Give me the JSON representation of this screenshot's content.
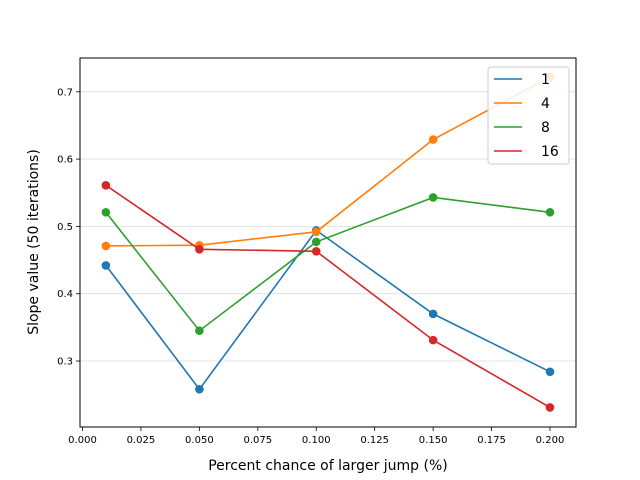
{
  "chart_data": {
    "type": "line",
    "title": "",
    "xlabel": "Percent chance of larger jump (%)",
    "ylabel": "Slope value (50 iterations)",
    "x": [
      0.01,
      0.05,
      0.1,
      0.15,
      0.2
    ],
    "xlim": [
      -0.0,
      0.21
    ],
    "ylim": [
      0.2,
      0.75
    ],
    "xticks": [
      0.0,
      0.025,
      0.05,
      0.075,
      0.1,
      0.125,
      0.15,
      0.175,
      0.2
    ],
    "xtick_labels": [
      "0.000",
      "0.025",
      "0.050",
      "0.075",
      "0.100",
      "0.125",
      "0.150",
      "0.175",
      "0.200"
    ],
    "yticks": [
      0.3,
      0.4,
      0.5,
      0.6,
      0.7
    ],
    "ytick_labels": [
      "0.3",
      "0.4",
      "0.5",
      "0.6",
      "0.7"
    ],
    "grid": "horizontal",
    "legend_position": "top-right",
    "series": [
      {
        "name": "1",
        "color": "#1f77b4",
        "values": [
          0.442,
          0.258,
          0.494,
          0.37,
          0.284
        ]
      },
      {
        "name": "4",
        "color": "#ff7f0e",
        "values": [
          0.471,
          0.472,
          0.492,
          0.629,
          0.722
        ]
      },
      {
        "name": "8",
        "color": "#2ca02c",
        "values": [
          0.521,
          0.345,
          0.477,
          0.543,
          0.521
        ]
      },
      {
        "name": "16",
        "color": "#d62728",
        "values": [
          0.561,
          0.466,
          0.463,
          0.331,
          0.231
        ]
      }
    ]
  }
}
